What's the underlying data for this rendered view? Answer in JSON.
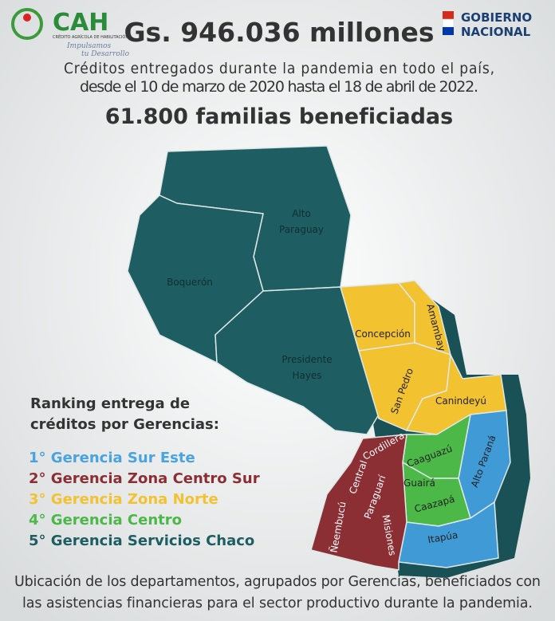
{
  "header": {
    "logo_name": "CAH",
    "logo_subtitle": "CRÉDITO AGRÍCOLA DE HABILITACIÓN",
    "logo_slogan": [
      "Impulsamos",
      "tu Desarrollo"
    ],
    "title": "Gs. 946.036 millones",
    "government": [
      "GOBIERNO",
      "NACIONAL"
    ]
  },
  "subtitle": [
    "Créditos entregados durante la pandemia en todo el país,",
    "desde el 10 de marzo de 2020 hasta el 18 de abril de 2022."
  ],
  "families": "61.800 familias beneficiadas",
  "map": {
    "departments": [
      {
        "lines": [
          "Alto",
          "Paraguay"
        ]
      },
      {
        "lines": [
          "Boquerón"
        ]
      },
      {
        "lines": [
          "Presidente",
          "Hayes"
        ]
      },
      {
        "lines": [
          "Concepción"
        ]
      },
      {
        "lines": [
          "Amambay"
        ]
      },
      {
        "lines": [
          "San Pedro"
        ]
      },
      {
        "lines": [
          "Canindeyú"
        ]
      },
      {
        "lines": [
          "Caaguazú"
        ]
      },
      {
        "lines": [
          "Alto Paraná"
        ]
      },
      {
        "lines": [
          "Guairá"
        ]
      },
      {
        "lines": [
          "Caazapá"
        ]
      },
      {
        "lines": [
          "Itapúa"
        ]
      },
      {
        "lines": [
          "Cordillera"
        ]
      },
      {
        "lines": [
          "Central"
        ]
      },
      {
        "lines": [
          "Paraguarí"
        ]
      },
      {
        "lines": [
          "Ñeembucú"
        ]
      },
      {
        "lines": [
          "Misiones"
        ]
      }
    ]
  },
  "ranking": {
    "title": [
      "Ranking entrega de",
      "créditos por Gerencias:"
    ],
    "items": [
      {
        "text": "1° Gerencia Sur Este",
        "color": "#4aa3df"
      },
      {
        "text": "2° Gerencia Zona Centro Sur",
        "color": "#8b2f35"
      },
      {
        "text": "3° Gerencia Zona Norte",
        "color": "#f2c230"
      },
      {
        "text": "4° Gerencia Centro",
        "color": "#4cb848"
      },
      {
        "text": "5° Gerencia Servicios Chaco",
        "color": "#1e5e63"
      }
    ]
  },
  "footer": [
    "Ubicación de los departamentos, agrupados por Gerencias, beneficiados con",
    "las asistencias financieras para el sector productivo durante la pandemia."
  ]
}
